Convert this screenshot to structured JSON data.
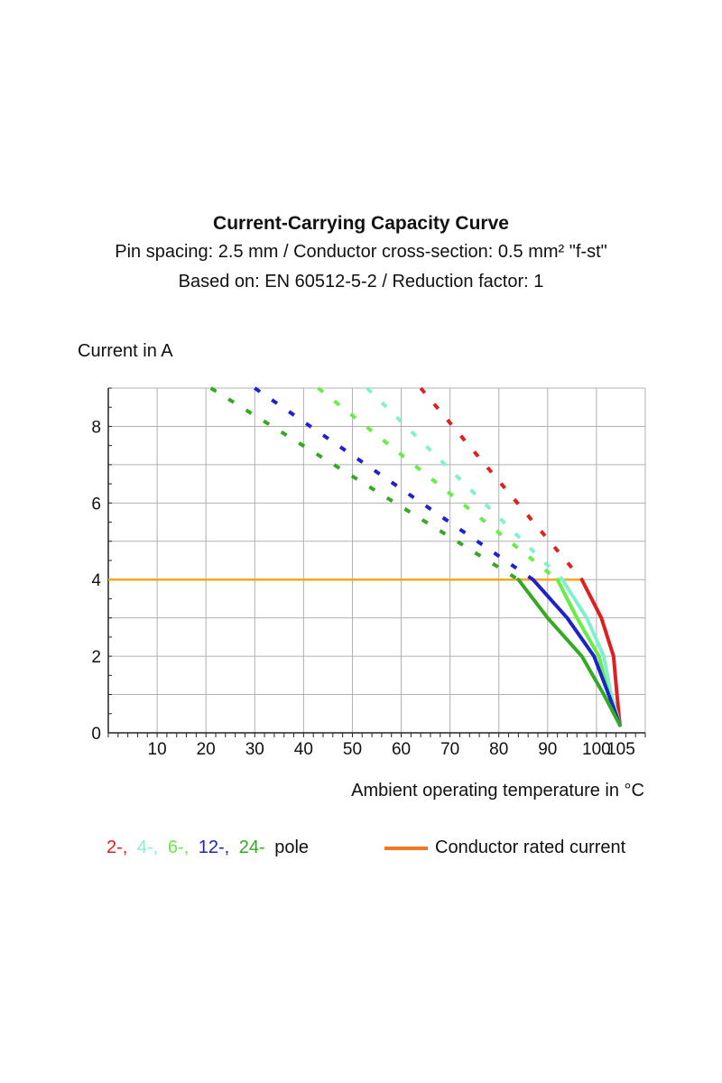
{
  "chart_data": {
    "type": "line",
    "title": "Current-Carrying Capacity Curve",
    "subtitle_lines": [
      "Pin spacing: 2.5 mm / Conductor cross-section: 0.5 mm² \"f-st\"",
      "Based on: EN 60512-5-2 / Reduction factor: 1"
    ],
    "ylabel": "Current in A",
    "xlabel": "Ambient operating temperature in °C",
    "xlim": [
      0,
      110
    ],
    "ylim": [
      0,
      9
    ],
    "x_ticks": [
      10,
      20,
      30,
      40,
      50,
      60,
      70,
      80,
      90,
      100,
      105
    ],
    "y_ticks": [
      0,
      2,
      4,
      6,
      8
    ],
    "grid": true,
    "rated_current": {
      "name": "Conductor rated current",
      "value": 4,
      "color": "#f5a623"
    },
    "series": [
      {
        "name": "2-",
        "color": "#e02020",
        "dashed": [
          [
            64,
            9
          ],
          [
            97,
            4
          ]
        ],
        "solid": [
          [
            97,
            4
          ],
          [
            101,
            3
          ],
          [
            103.5,
            2
          ],
          [
            104.2,
            1
          ],
          [
            104.8,
            0.2
          ]
        ]
      },
      {
        "name": "4-",
        "color": "#7ff0d0",
        "dashed": [
          [
            53,
            9
          ],
          [
            93,
            4
          ]
        ],
        "solid": [
          [
            93,
            4
          ],
          [
            98,
            3
          ],
          [
            101.5,
            2
          ],
          [
            103,
            1
          ],
          [
            104.8,
            0.2
          ]
        ]
      },
      {
        "name": "6-",
        "color": "#66ee44",
        "dashed": [
          [
            43,
            9
          ],
          [
            92,
            4
          ]
        ],
        "solid": [
          [
            92,
            4
          ],
          [
            96,
            3
          ],
          [
            100.5,
            2
          ],
          [
            102.5,
            1
          ],
          [
            104.8,
            0.2
          ]
        ]
      },
      {
        "name": "12-",
        "color": "#1e22cc",
        "dashed": [
          [
            30,
            9
          ],
          [
            87,
            4
          ]
        ],
        "solid": [
          [
            87,
            4
          ],
          [
            94,
            3
          ],
          [
            99.5,
            2
          ],
          [
            102.5,
            1
          ],
          [
            104.8,
            0.2
          ]
        ]
      },
      {
        "name": "24-",
        "color": "#33aa22",
        "dashed": [
          [
            21,
            9
          ],
          [
            84,
            4
          ]
        ],
        "solid": [
          [
            84,
            4
          ],
          [
            90,
            3
          ],
          [
            97,
            2
          ],
          [
            101.5,
            1
          ],
          [
            104.8,
            0.2
          ]
        ]
      }
    ]
  },
  "legend": {
    "pole_items": [
      {
        "text": "2-,",
        "color": "#e02020"
      },
      {
        "text": "4-,",
        "color": "#7ff0d0"
      },
      {
        "text": "6-,",
        "color": "#66ee44"
      },
      {
        "text": "12-,",
        "color": "#1e22cc"
      },
      {
        "text": "24-",
        "color": "#33aa22"
      }
    ],
    "pole_suffix": "pole",
    "rated_label": "Conductor rated current",
    "rated_color": "#f07820"
  }
}
